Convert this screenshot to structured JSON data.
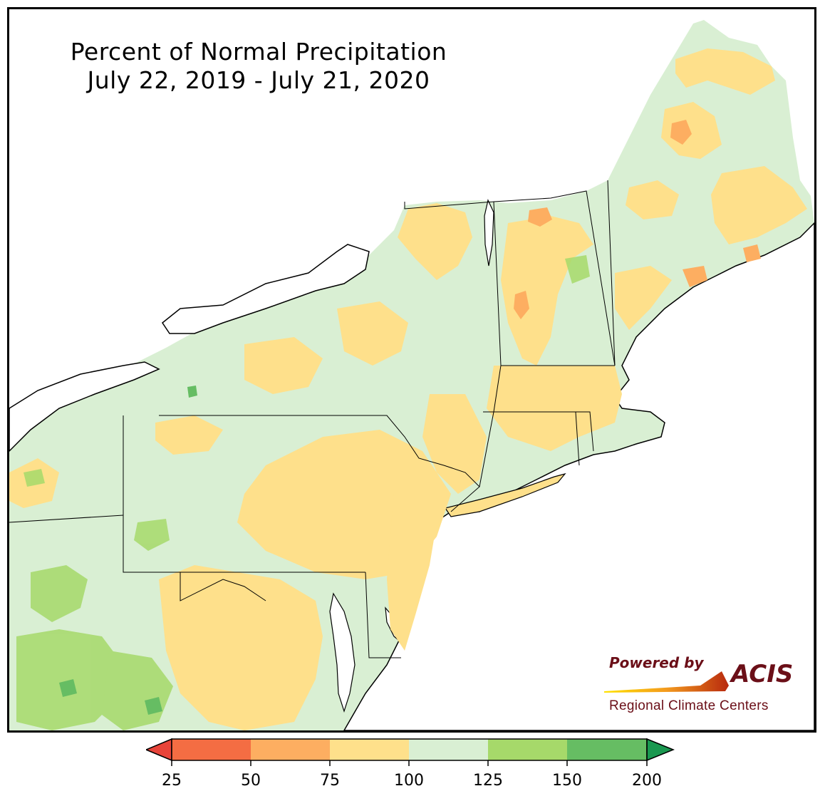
{
  "title": {
    "line1": "Percent of Normal Precipitation",
    "line2": "July 22, 2019 - July 21, 2020"
  },
  "logo": {
    "powered_by": "Powered by",
    "brand": "ACIS",
    "subtitle": "Regional Climate Centers"
  },
  "legend": {
    "ticks": [
      "25",
      "50",
      "75",
      "100",
      "125",
      "150",
      "200"
    ],
    "colors": [
      "#e8443a",
      "#f46d43",
      "#fdae61",
      "#fee08b",
      "#d9efd3",
      "#a6d96a",
      "#66bd63",
      "#1a9850"
    ],
    "bins": [
      {
        "min": "25",
        "max": "50",
        "color": "#f46d43"
      },
      {
        "min": "50",
        "max": "75",
        "color": "#fdae61"
      },
      {
        "min": "75",
        "max": "100",
        "color": "#fee08b"
      },
      {
        "min": "100",
        "max": "125",
        "color": "#d9efd3"
      },
      {
        "min": "125",
        "max": "150",
        "color": "#a6d96a"
      },
      {
        "min": "150",
        "max": "200",
        "color": "#66bd63"
      }
    ],
    "under_color": "#e8443a",
    "over_color": "#1a9850"
  },
  "map": {
    "region": "Northeast United States",
    "land_base_color": "#d9efd3",
    "water_color": "#ffffff",
    "border_color": "#000000",
    "county_line_color": "#9aa59a"
  }
}
